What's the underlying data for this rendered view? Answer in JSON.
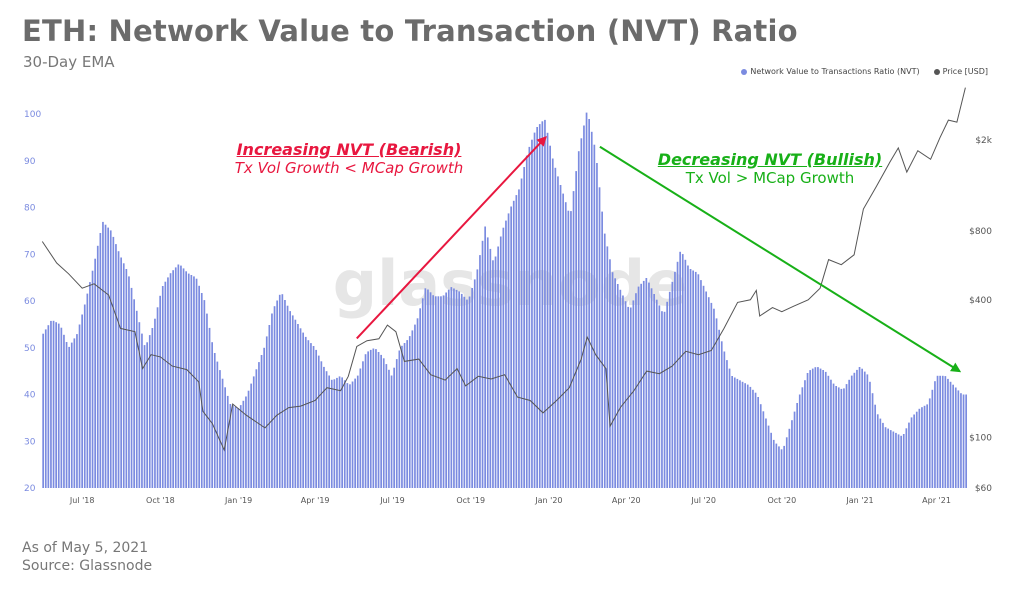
{
  "page": {
    "title": "ETH: Network Value to Transaction (NVT) Ratio",
    "subtitle": "30-Day EMA",
    "as_of": "As of May 5, 2021",
    "source": "Source: Glassnode",
    "watermark": "glassnode"
  },
  "annotations": {
    "bearish": {
      "title": "Increasing NVT (Bearish)",
      "text": "Tx Vol Growth < MCap Growth",
      "color": "#e8173f"
    },
    "bullish": {
      "title": "Decreasing NVT (Bullish)",
      "text": "Tx Vol > MCap Growth",
      "color": "#18b018"
    }
  },
  "legend": [
    {
      "label": "Network Value to Transactions Ratio (NVT)",
      "color": "#7b8be0"
    },
    {
      "label": "Price [USD]",
      "color": "#555555"
    }
  ],
  "chart_data": {
    "type": "bar",
    "title": "ETH: Network Value to Transaction (NVT) Ratio",
    "subtitle": "30-Day EMA",
    "x_ticks": [
      "Jul '18",
      "Oct '18",
      "Jan '19",
      "Apr '19",
      "Jul '19",
      "Oct '19",
      "Jan '20",
      "Apr '20",
      "Jul '20",
      "Oct '20",
      "Jan '21",
      "Apr '21"
    ],
    "y_left": {
      "lim": [
        20,
        103
      ],
      "ticks": [
        20,
        30,
        40,
        50,
        60,
        70,
        80,
        90,
        100
      ]
    },
    "y_right": {
      "scale": "log",
      "lim": [
        60,
        3000
      ],
      "ticks": [
        60,
        100,
        400,
        800,
        2000
      ],
      "tick_labels": [
        "$60",
        "$100",
        "$400",
        "$800",
        "$2k"
      ]
    },
    "series": [
      {
        "name": "Network Value to Transactions Ratio (NVT)",
        "type": "bar",
        "color": "#7b8be0",
        "axis": "left",
        "points": [
          [
            "2018-05-15",
            53
          ],
          [
            "2018-05-25",
            56
          ],
          [
            "2018-06-04",
            55
          ],
          [
            "2018-06-14",
            50
          ],
          [
            "2018-06-24",
            53
          ],
          [
            "2018-07-04",
            60
          ],
          [
            "2018-07-14",
            68
          ],
          [
            "2018-07-24",
            77
          ],
          [
            "2018-08-03",
            75
          ],
          [
            "2018-08-13",
            70
          ],
          [
            "2018-08-23",
            66
          ],
          [
            "2018-09-02",
            58
          ],
          [
            "2018-09-12",
            50
          ],
          [
            "2018-09-22",
            55
          ],
          [
            "2018-10-02",
            63
          ],
          [
            "2018-10-12",
            66
          ],
          [
            "2018-10-22",
            68
          ],
          [
            "2018-11-01",
            66
          ],
          [
            "2018-11-11",
            65
          ],
          [
            "2018-11-21",
            60
          ],
          [
            "2018-12-01",
            50
          ],
          [
            "2018-12-11",
            44
          ],
          [
            "2018-12-21",
            38
          ],
          [
            "2018-12-31",
            37
          ],
          [
            "2019-01-10",
            40
          ],
          [
            "2019-01-20",
            45
          ],
          [
            "2019-01-30",
            50
          ],
          [
            "2019-02-09",
            58
          ],
          [
            "2019-02-19",
            62
          ],
          [
            "2019-03-01",
            58
          ],
          [
            "2019-03-11",
            55
          ],
          [
            "2019-03-21",
            52
          ],
          [
            "2019-03-31",
            50
          ],
          [
            "2019-04-10",
            46
          ],
          [
            "2019-04-20",
            43
          ],
          [
            "2019-04-30",
            44
          ],
          [
            "2019-05-10",
            42
          ],
          [
            "2019-05-20",
            44
          ],
          [
            "2019-05-30",
            49
          ],
          [
            "2019-06-09",
            50
          ],
          [
            "2019-06-19",
            48
          ],
          [
            "2019-06-29",
            44
          ],
          [
            "2019-07-09",
            50
          ],
          [
            "2019-07-19",
            52
          ],
          [
            "2019-07-29",
            56
          ],
          [
            "2019-08-08",
            63
          ],
          [
            "2019-08-18",
            61
          ],
          [
            "2019-08-28",
            61
          ],
          [
            "2019-09-07",
            63
          ],
          [
            "2019-09-17",
            62
          ],
          [
            "2019-09-27",
            60
          ],
          [
            "2019-10-07",
            66
          ],
          [
            "2019-10-17",
            76
          ],
          [
            "2019-10-27",
            68
          ],
          [
            "2019-11-06",
            75
          ],
          [
            "2019-11-16",
            80
          ],
          [
            "2019-11-26",
            84
          ],
          [
            "2019-12-06",
            92
          ],
          [
            "2019-12-16",
            97
          ],
          [
            "2019-12-26",
            99
          ],
          [
            "2020-01-05",
            90
          ],
          [
            "2020-01-15",
            84
          ],
          [
            "2020-01-25",
            78
          ],
          [
            "2020-02-04",
            92
          ],
          [
            "2020-02-14",
            101
          ],
          [
            "2020-02-24",
            92
          ],
          [
            "2020-03-05",
            75
          ],
          [
            "2020-03-15",
            66
          ],
          [
            "2020-03-25",
            62
          ],
          [
            "2020-04-04",
            58
          ],
          [
            "2020-04-14",
            63
          ],
          [
            "2020-04-24",
            65
          ],
          [
            "2020-05-04",
            61
          ],
          [
            "2020-05-14",
            57
          ],
          [
            "2020-05-24",
            64
          ],
          [
            "2020-06-03",
            71
          ],
          [
            "2020-06-13",
            67
          ],
          [
            "2020-06-23",
            66
          ],
          [
            "2020-07-03",
            62
          ],
          [
            "2020-07-13",
            58
          ],
          [
            "2020-07-23",
            50
          ],
          [
            "2020-08-02",
            44
          ],
          [
            "2020-08-12",
            43
          ],
          [
            "2020-08-22",
            42
          ],
          [
            "2020-09-01",
            40
          ],
          [
            "2020-09-11",
            35
          ],
          [
            "2020-09-21",
            30
          ],
          [
            "2020-10-01",
            28
          ],
          [
            "2020-10-11",
            34
          ],
          [
            "2020-10-21",
            40
          ],
          [
            "2020-10-31",
            45
          ],
          [
            "2020-11-10",
            46
          ],
          [
            "2020-11-20",
            45
          ],
          [
            "2020-12-01",
            42
          ],
          [
            "2020-12-11",
            41
          ],
          [
            "2020-12-21",
            44
          ],
          [
            "2020-12-31",
            46
          ],
          [
            "2021-01-10",
            44
          ],
          [
            "2021-01-20",
            36
          ],
          [
            "2021-01-30",
            33
          ],
          [
            "2021-02-09",
            32
          ],
          [
            "2021-02-19",
            31
          ],
          [
            "2021-03-01",
            35
          ],
          [
            "2021-03-11",
            37
          ],
          [
            "2021-03-21",
            38
          ],
          [
            "2021-03-31",
            44
          ],
          [
            "2021-04-10",
            44
          ],
          [
            "2021-04-20",
            42
          ],
          [
            "2021-04-30",
            40
          ],
          [
            "2021-05-05",
            40
          ]
        ]
      },
      {
        "name": "Price [USD]",
        "type": "line",
        "color": "#555555",
        "axis": "right",
        "points": [
          [
            "2018-05-15",
            720
          ],
          [
            "2018-06-01",
            580
          ],
          [
            "2018-06-15",
            520
          ],
          [
            "2018-07-01",
            450
          ],
          [
            "2018-07-15",
            470
          ],
          [
            "2018-08-01",
            420
          ],
          [
            "2018-08-15",
            300
          ],
          [
            "2018-09-01",
            290
          ],
          [
            "2018-09-10",
            200
          ],
          [
            "2018-09-20",
            230
          ],
          [
            "2018-10-01",
            225
          ],
          [
            "2018-10-15",
            205
          ],
          [
            "2018-11-01",
            198
          ],
          [
            "2018-11-15",
            175
          ],
          [
            "2018-11-20",
            130
          ],
          [
            "2018-12-01",
            115
          ],
          [
            "2018-12-15",
            88
          ],
          [
            "2018-12-25",
            140
          ],
          [
            "2019-01-10",
            125
          ],
          [
            "2019-02-01",
            110
          ],
          [
            "2019-02-15",
            125
          ],
          [
            "2019-03-01",
            135
          ],
          [
            "2019-03-15",
            137
          ],
          [
            "2019-04-01",
            145
          ],
          [
            "2019-04-15",
            165
          ],
          [
            "2019-05-01",
            160
          ],
          [
            "2019-05-10",
            185
          ],
          [
            "2019-05-20",
            250
          ],
          [
            "2019-06-01",
            265
          ],
          [
            "2019-06-15",
            270
          ],
          [
            "2019-06-25",
            310
          ],
          [
            "2019-07-05",
            290
          ],
          [
            "2019-07-15",
            215
          ],
          [
            "2019-08-01",
            220
          ],
          [
            "2019-08-15",
            188
          ],
          [
            "2019-09-01",
            178
          ],
          [
            "2019-09-15",
            200
          ],
          [
            "2019-09-25",
            168
          ],
          [
            "2019-10-10",
            185
          ],
          [
            "2019-10-25",
            180
          ],
          [
            "2019-11-10",
            188
          ],
          [
            "2019-11-25",
            150
          ],
          [
            "2019-12-10",
            145
          ],
          [
            "2019-12-25",
            128
          ],
          [
            "2020-01-10",
            145
          ],
          [
            "2020-01-25",
            165
          ],
          [
            "2020-02-08",
            220
          ],
          [
            "2020-02-15",
            275
          ],
          [
            "2020-02-25",
            230
          ],
          [
            "2020-03-08",
            200
          ],
          [
            "2020-03-13",
            112
          ],
          [
            "2020-03-25",
            135
          ],
          [
            "2020-04-10",
            160
          ],
          [
            "2020-04-25",
            195
          ],
          [
            "2020-05-10",
            190
          ],
          [
            "2020-05-25",
            205
          ],
          [
            "2020-06-10",
            238
          ],
          [
            "2020-06-25",
            230
          ],
          [
            "2020-07-10",
            240
          ],
          [
            "2020-07-25",
            300
          ],
          [
            "2020-08-10",
            390
          ],
          [
            "2020-08-25",
            400
          ],
          [
            "2020-09-01",
            440
          ],
          [
            "2020-09-05",
            340
          ],
          [
            "2020-09-20",
            370
          ],
          [
            "2020-10-01",
            355
          ],
          [
            "2020-10-15",
            375
          ],
          [
            "2020-11-01",
            400
          ],
          [
            "2020-11-15",
            450
          ],
          [
            "2020-11-25",
            600
          ],
          [
            "2020-12-10",
            570
          ],
          [
            "2020-12-25",
            630
          ],
          [
            "2021-01-05",
            1000
          ],
          [
            "2021-01-20",
            1250
          ],
          [
            "2021-02-05",
            1600
          ],
          [
            "2021-02-15",
            1850
          ],
          [
            "2021-02-25",
            1450
          ],
          [
            "2021-03-10",
            1800
          ],
          [
            "2021-03-25",
            1650
          ],
          [
            "2021-04-05",
            2050
          ],
          [
            "2021-04-15",
            2450
          ],
          [
            "2021-04-25",
            2400
          ],
          [
            "2021-05-05",
            3400
          ]
        ]
      }
    ],
    "annotations": [
      {
        "text": "Increasing NVT (Bearish)",
        "arrow_from": [
          "2019-05-20",
          52
        ],
        "arrow_to": [
          "2019-12-28",
          95
        ]
      },
      {
        "text": "Decreasing NVT (Bullish)",
        "arrow_from": [
          "2020-03-01",
          93
        ],
        "arrow_to": [
          "2021-05-05",
          45
        ]
      }
    ]
  }
}
